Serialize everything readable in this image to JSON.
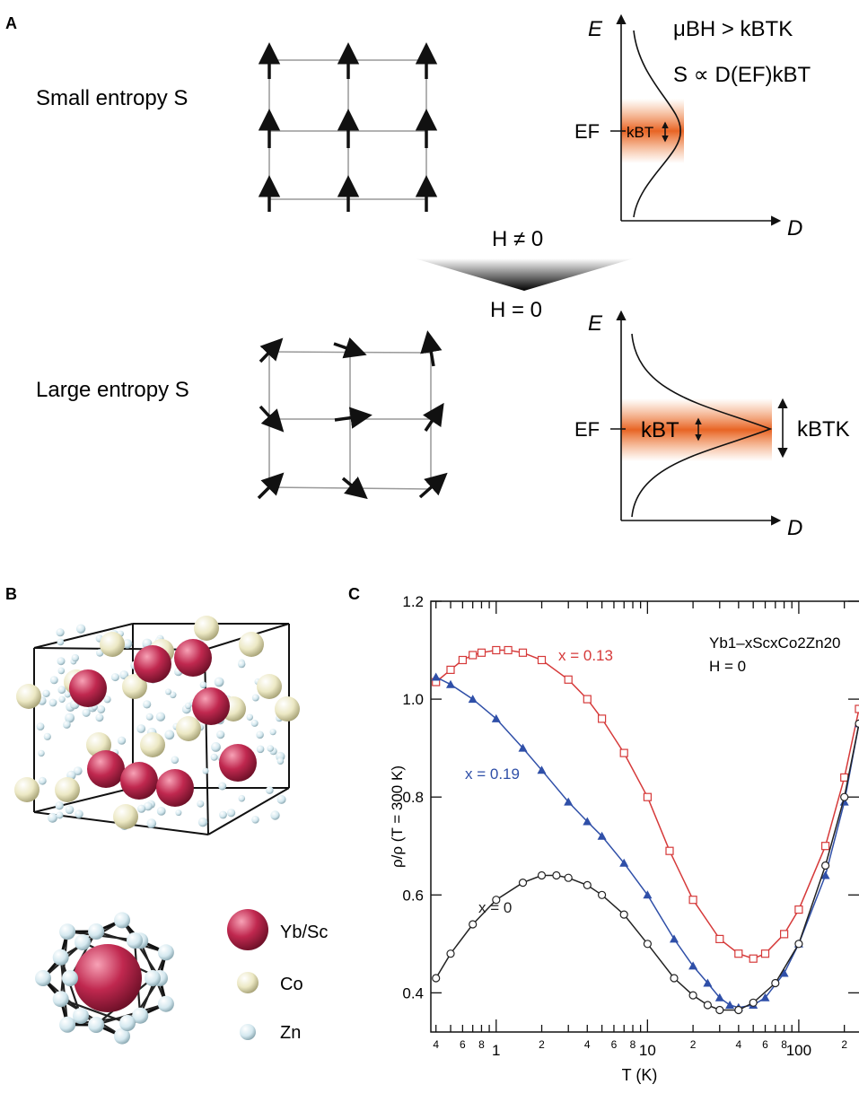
{
  "panel_a": {
    "label": "A",
    "small_entropy_label": "Small entropy S",
    "large_entropy_label": "Large entropy S",
    "field_nonzero": "H ≠ 0",
    "field_zero": "H = 0",
    "condition": "μBH > kBTK",
    "entropy_relation": "S ∝ D(EF)kBT",
    "axis_energy": "E",
    "axis_dos": "D",
    "fermi_label": "EF",
    "thermal_label": "kBT",
    "kondo_label": "kBTK"
  },
  "panel_b": {
    "label": "B",
    "legend": [
      {
        "name": "Yb/Sc",
        "color": "#c0284f"
      },
      {
        "name": "Co",
        "color": "#ece8c4"
      },
      {
        "name": "Zn",
        "color": "#d4e8ef"
      }
    ]
  },
  "panel_c": {
    "label": "C",
    "legend_formula": "Yb1–xScxCo2Zn20",
    "legend_field": "H = 0"
  },
  "chart_data": {
    "type": "scatter",
    "title": "",
    "xlabel": "T (K)",
    "ylabel": "ρ/ρ (T = 300 K)",
    "x_scale": "log",
    "xlim": [
      0.37,
      250
    ],
    "ylim": [
      0.32,
      1.2
    ],
    "yticks": [
      0.4,
      0.6,
      0.8,
      1.0,
      1.2
    ],
    "xtick_labels": [
      "4",
      "6",
      "8",
      "1",
      "2",
      "4",
      "6",
      "8",
      "10",
      "2",
      "4",
      "6",
      "8",
      "100",
      "2"
    ],
    "series": [
      {
        "name": "x = 0.13",
        "color": "#d63a3a",
        "marker": "open-square",
        "x": [
          0.4,
          0.5,
          0.6,
          0.7,
          0.8,
          1.0,
          1.2,
          1.5,
          2.0,
          3.0,
          4.0,
          5.0,
          7.0,
          10,
          14,
          20,
          30,
          40,
          50,
          60,
          80,
          100,
          150,
          200,
          250
        ],
        "y": [
          1.035,
          1.06,
          1.08,
          1.09,
          1.095,
          1.1,
          1.1,
          1.095,
          1.08,
          1.04,
          1.0,
          0.96,
          0.89,
          0.8,
          0.69,
          0.59,
          0.51,
          0.48,
          0.47,
          0.48,
          0.52,
          0.57,
          0.7,
          0.84,
          0.98
        ]
      },
      {
        "name": "x = 0.19",
        "color": "#2f4fa8",
        "marker": "filled-triangle",
        "x": [
          0.4,
          0.5,
          0.7,
          1.0,
          1.5,
          2.0,
          3.0,
          4.0,
          5.0,
          7.0,
          10,
          15,
          20,
          25,
          30,
          35,
          40,
          50,
          60,
          80,
          100,
          150,
          200,
          250
        ],
        "y": [
          1.045,
          1.03,
          1.0,
          0.96,
          0.9,
          0.855,
          0.79,
          0.75,
          0.72,
          0.665,
          0.6,
          0.51,
          0.455,
          0.42,
          0.39,
          0.375,
          0.37,
          0.375,
          0.39,
          0.44,
          0.5,
          0.64,
          0.79,
          0.95
        ]
      },
      {
        "name": "x = 0",
        "color": "#222222",
        "marker": "open-circle",
        "x": [
          0.4,
          0.5,
          0.7,
          1.0,
          1.5,
          2.0,
          2.5,
          3.0,
          4.0,
          5.0,
          7.0,
          10,
          15,
          20,
          25,
          30,
          40,
          50,
          70,
          100,
          150,
          200,
          250
        ],
        "y": [
          0.43,
          0.48,
          0.54,
          0.59,
          0.625,
          0.64,
          0.64,
          0.635,
          0.62,
          0.6,
          0.56,
          0.5,
          0.43,
          0.395,
          0.375,
          0.365,
          0.365,
          0.38,
          0.42,
          0.5,
          0.66,
          0.8,
          0.95
        ]
      }
    ]
  }
}
